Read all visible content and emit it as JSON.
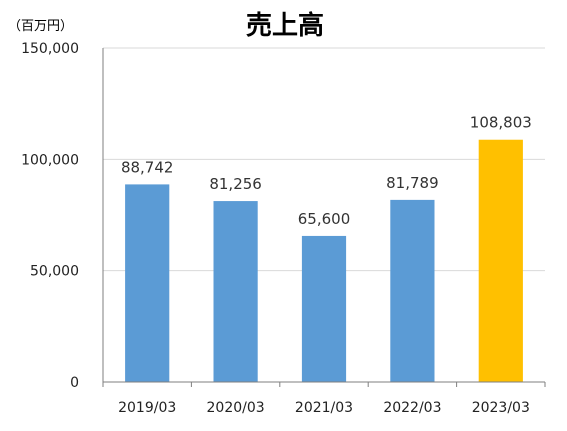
{
  "chart_data": {
    "type": "bar",
    "title": "売上高",
    "unit_label": "（百万円）",
    "categories": [
      "2019/03",
      "2020/03",
      "2021/03",
      "2022/03",
      "2023/03"
    ],
    "values": [
      88742,
      81256,
      65600,
      81789,
      108803
    ],
    "value_labels": [
      "88,742",
      "81,256",
      "65,600",
      "81,789",
      "108,803"
    ],
    "ylim": [
      0,
      150000
    ],
    "y_ticks": [
      0,
      50000,
      100000,
      150000
    ],
    "y_tick_labels": [
      "0",
      "50,000",
      "100,000",
      "150,000"
    ],
    "grid": true,
    "legend": "none",
    "colors": {
      "bar": "#5b9bd5",
      "highlight": "#ffc000"
    },
    "highlight_index": 4
  }
}
